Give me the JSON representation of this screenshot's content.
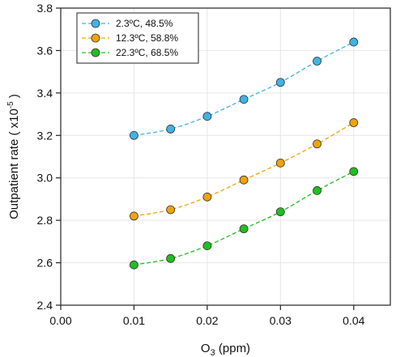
{
  "chart_data": {
    "type": "line",
    "xlabel": "O3 (ppm)",
    "xlabel_main": "O",
    "xlabel_sub": "3",
    "xlabel_rest": " (ppm)",
    "ylabel": "Outpatient rate ( x10-5 )",
    "ylabel_main": "Outpatient rate ( x10",
    "ylabel_sup": "-5",
    "ylabel_end": " )",
    "xlim": [
      0.0,
      0.045
    ],
    "ylim": [
      2.4,
      3.8
    ],
    "x_ticks": [
      "0.00",
      "0.01",
      "0.02",
      "0.03",
      "0.04"
    ],
    "x_tick_values": [
      0.0,
      0.01,
      0.02,
      0.03,
      0.04
    ],
    "y_ticks": [
      "2.4",
      "2.6",
      "2.8",
      "3.0",
      "3.2",
      "3.4",
      "3.6",
      "3.8"
    ],
    "y_tick_values": [
      2.4,
      2.6,
      2.8,
      3.0,
      3.2,
      3.4,
      3.6,
      3.8
    ],
    "grid": true,
    "legend_position": "top-left",
    "x": [
      0.01,
      0.015,
      0.02,
      0.025,
      0.03,
      0.035,
      0.04
    ],
    "series": [
      {
        "name": "2.3ºC, 48.5%",
        "color": "#3db4e6",
        "values": [
          3.2,
          3.23,
          3.29,
          3.37,
          3.45,
          3.55,
          3.64
        ]
      },
      {
        "name": "12.3ºC, 58.8%",
        "color": "#f0a30a",
        "values": [
          2.82,
          2.85,
          2.91,
          2.99,
          3.07,
          3.16,
          3.26
        ]
      },
      {
        "name": "22.3ºC, 68.5%",
        "color": "#1fbf1f",
        "values": [
          2.59,
          2.62,
          2.68,
          2.76,
          2.84,
          2.94,
          3.03
        ]
      }
    ]
  }
}
